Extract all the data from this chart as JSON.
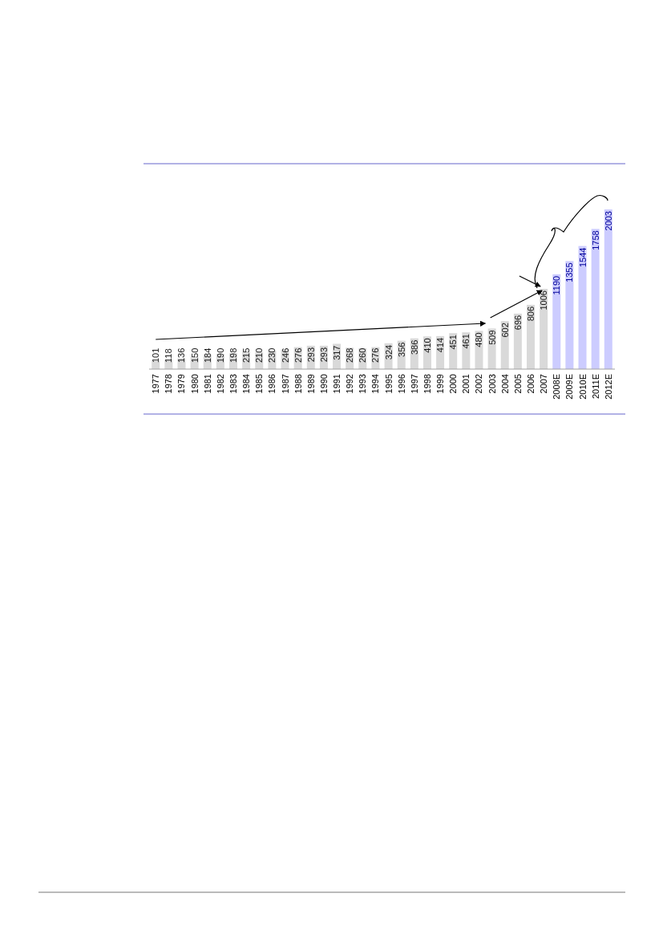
{
  "chart_data": {
    "type": "bar",
    "categories": [
      "1977",
      "1978",
      "1979",
      "1980",
      "1981",
      "1982",
      "1983",
      "1984",
      "1985",
      "1986",
      "1987",
      "1988",
      "1989",
      "1990",
      "1991",
      "1992",
      "1993",
      "1994",
      "1995",
      "1996",
      "1997",
      "1998",
      "1999",
      "2000",
      "2001",
      "2002",
      "2003",
      "2004",
      "2005",
      "2006",
      "2007",
      "2008E",
      "2009E",
      "2010E",
      "2011E",
      "2012E"
    ],
    "values": [
      101,
      118,
      136,
      150,
      184,
      190,
      198,
      215,
      210,
      230,
      246,
      276,
      293,
      293,
      317,
      268,
      260,
      276,
      324,
      356,
      386,
      410,
      414,
      451,
      461,
      480,
      509,
      602,
      696,
      806,
      1006,
      1190,
      1355,
      1544,
      1758,
      2003
    ],
    "colors": [
      "#d9d9d9",
      "#d9d9d9",
      "#d9d9d9",
      "#d9d9d9",
      "#d9d9d9",
      "#d9d9d9",
      "#d9d9d9",
      "#d9d9d9",
      "#d9d9d9",
      "#d9d9d9",
      "#d9d9d9",
      "#d9d9d9",
      "#d9d9d9",
      "#d9d9d9",
      "#d9d9d9",
      "#d9d9d9",
      "#d9d9d9",
      "#d9d9d9",
      "#d9d9d9",
      "#d9d9d9",
      "#d9d9d9",
      "#d9d9d9",
      "#d9d9d9",
      "#d9d9d9",
      "#d9d9d9",
      "#d9d9d9",
      "#d9d9d9",
      "#d9d9d9",
      "#d9d9d9",
      "#d9d9d9",
      "#d9d9d9",
      "#ccccff",
      "#ccccff",
      "#ccccff",
      "#ccccff",
      "#ccccff"
    ],
    "data_labels": true
  }
}
